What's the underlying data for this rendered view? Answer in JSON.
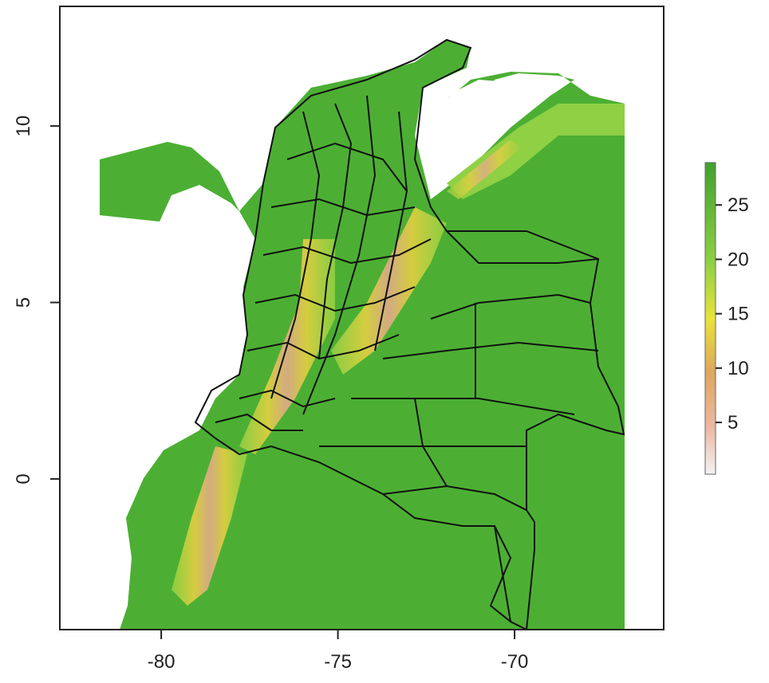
{
  "chart_data": {
    "type": "raster-map",
    "xlim": [
      -82.87,
      -65.78
    ],
    "xticks": [
      -80,
      -75,
      -70
    ],
    "ylim": [
      -4.27,
      13.39
    ],
    "yticks": [
      0,
      5,
      10
    ],
    "colorbar": {
      "lim": [
        0.24,
        28.9
      ],
      "ticks": [
        5,
        10,
        15,
        20,
        25
      ]
    }
  }
}
